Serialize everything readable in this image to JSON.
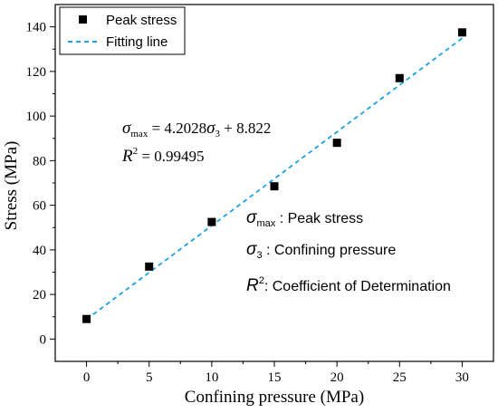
{
  "chart_data": {
    "type": "scatter",
    "xlabel": "Confining pressure (MPa)",
    "ylabel": "Stress (MPa)",
    "xlim": [
      -2.5,
      32.5
    ],
    "ylim": [
      -10,
      150
    ],
    "xticks": [
      0,
      5,
      10,
      15,
      20,
      25,
      30
    ],
    "yticks": [
      0,
      20,
      40,
      60,
      80,
      100,
      120,
      140
    ],
    "grid": false,
    "legend_position": "top-left",
    "series": [
      {
        "name": "Peak stress",
        "marker": "square",
        "color": "#000000",
        "x": [
          0,
          5,
          10,
          15,
          20,
          25,
          30
        ],
        "y": [
          9.0,
          32.5,
          52.5,
          68.5,
          88.0,
          117.0,
          137.5
        ]
      },
      {
        "name": "Fitting line",
        "style": "dashed",
        "color": "#1ba1e2",
        "x": [
          0,
          30
        ],
        "y": [
          8.822,
          134.906
        ]
      }
    ],
    "annotations": {
      "eq_sym": "σ",
      "eq_sub": "max",
      "eq_mid": " = 4.2028",
      "eq_sym2": "σ",
      "eq_sub2": "3",
      "eq_tail": " + 8.822",
      "r2_sym": "R",
      "r2_sup": "2",
      "r2_val": " = 0.99495",
      "def1_sym": "σ",
      "def1_sub": "max",
      "def1_text": " : Peak stress",
      "def2_sym": "σ",
      "def2_sub": "3",
      "def2_text": " : Confining pressure",
      "def3_sym": "R",
      "def3_sup": "2",
      "def3_text": ": Coefficient of Determination"
    }
  }
}
